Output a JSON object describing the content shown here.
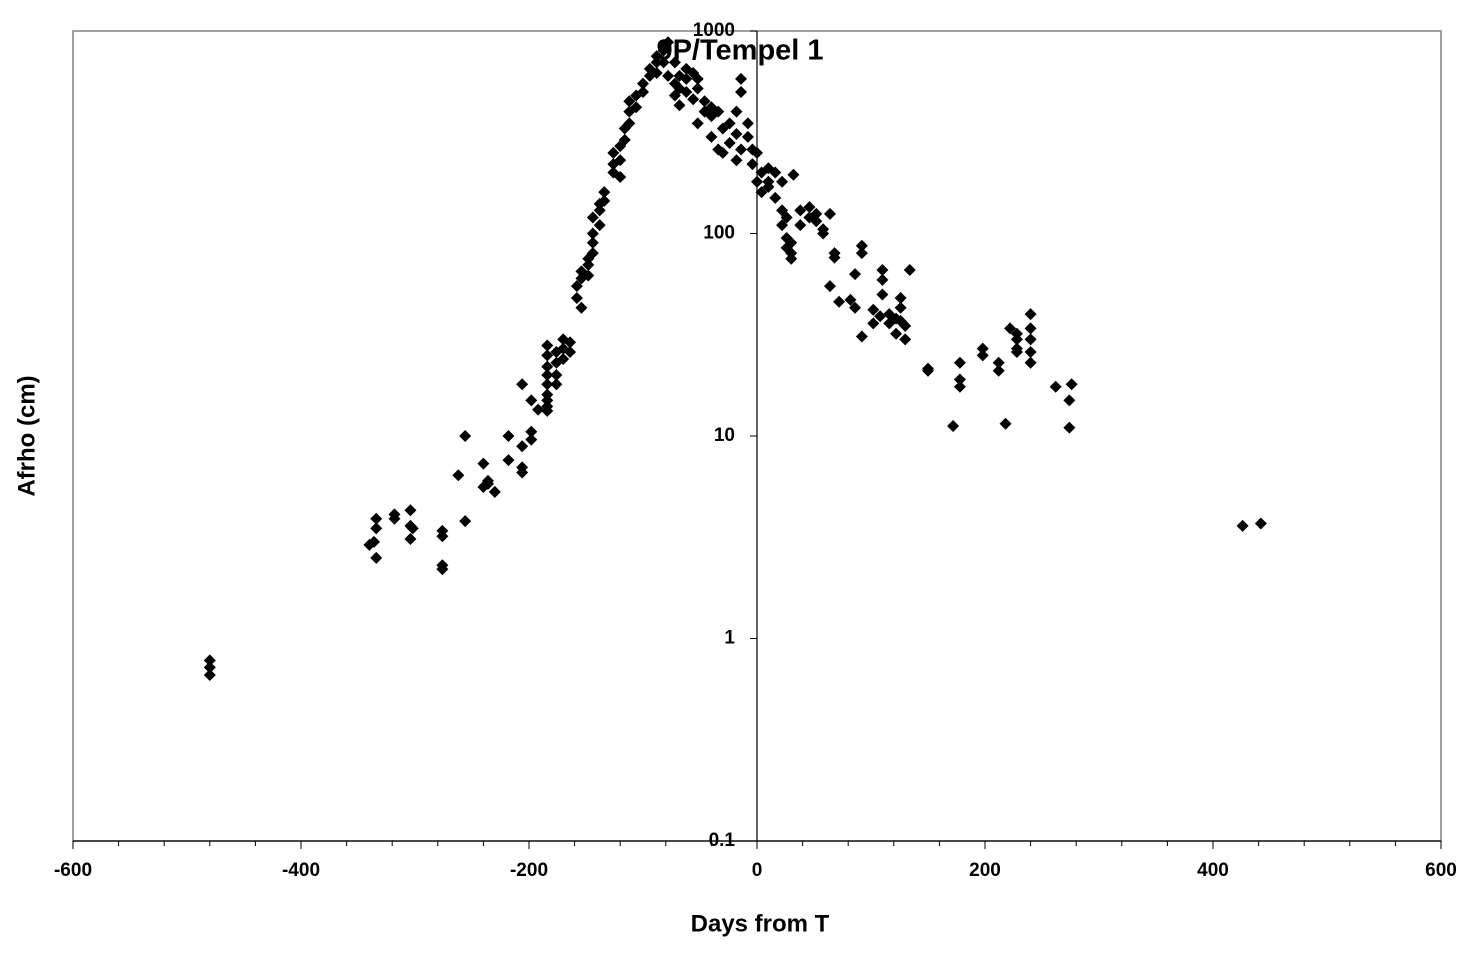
{
  "chart_data": {
    "type": "scatter",
    "title": "9P/Tempel 1",
    "xlabel": "Days from T",
    "ylabel": "Afrho (cm)",
    "color": "#000000",
    "yscale": "log",
    "marker": "diamond",
    "xlim": [
      -600,
      600
    ],
    "xticks": [
      -600,
      -400,
      -200,
      0,
      200,
      400,
      600
    ],
    "xminorticks": [
      -560,
      -520,
      -480,
      -440,
      -360,
      -320,
      -280,
      -240,
      -160,
      -120,
      -80,
      -40,
      40,
      80,
      120,
      160,
      240,
      280,
      320,
      360,
      440,
      480,
      520,
      560
    ],
    "ylim": [
      0.1,
      1000
    ],
    "yticks": [
      1000,
      100,
      10,
      1,
      0.1
    ],
    "x": [
      -480,
      -480,
      -480,
      -340,
      -336,
      -334,
      -334,
      -334,
      -318,
      -318,
      -304,
      -304,
      -304,
      -302,
      -276,
      -276,
      -276,
      -276,
      -262,
      -256,
      -256,
      -240,
      -240,
      -236,
      -236,
      -230,
      -218,
      -218,
      -206,
      -206,
      -206,
      -206,
      -198,
      -198,
      -198,
      -192,
      -184,
      -184,
      -184,
      -184,
      -184,
      -184,
      -184,
      -184,
      -184,
      -176,
      -176,
      -176,
      -176,
      -170,
      -170,
      -170,
      -164,
      -164,
      -158,
      -158,
      -154,
      -154,
      -154,
      -148,
      -148,
      -148,
      -144,
      -144,
      -144,
      -144,
      -138,
      -138,
      -138,
      -134,
      -134,
      -126,
      -126,
      -126,
      -120,
      -120,
      -120,
      -116,
      -116,
      -112,
      -112,
      -112,
      -106,
      -106,
      -100,
      -100,
      -94,
      -94,
      -88,
      -88,
      -88,
      -82,
      -82,
      -82,
      -78,
      -78,
      -72,
      -72,
      -72,
      -68,
      -68,
      -68,
      -62,
      -62,
      -62,
      -56,
      -56,
      -52,
      -52,
      -52,
      -46,
      -46,
      -40,
      -40,
      -40,
      -34,
      -34,
      -30,
      -30,
      -24,
      -24,
      -18,
      -18,
      -18,
      -14,
      -14,
      -14,
      -8,
      -8,
      -4,
      -4,
      0,
      0,
      4,
      4,
      10,
      10,
      10,
      16,
      16,
      22,
      22,
      22,
      26,
      26,
      26,
      30,
      30,
      30,
      32,
      38,
      38,
      46,
      46,
      52,
      52,
      58,
      58,
      64,
      64,
      68,
      68,
      72,
      82,
      86,
      86,
      92,
      92,
      92,
      102,
      102,
      108,
      110,
      110,
      110,
      116,
      116,
      122,
      122,
      126,
      126,
      126,
      130,
      130,
      134,
      150,
      150,
      172,
      178,
      178,
      178,
      198,
      198,
      212,
      212,
      218,
      222,
      228,
      228,
      228,
      228,
      240,
      240,
      240,
      240,
      240,
      262,
      274,
      274,
      276,
      426,
      442
    ],
    "values": [
      0.78,
      0.72,
      0.66,
      2.9,
      3.0,
      3.9,
      3.5,
      2.5,
      4.1,
      3.9,
      4.3,
      3.6,
      3.1,
      3.5,
      3.4,
      3.2,
      2.3,
      2.2,
      6.4,
      10,
      3.8,
      7.3,
      5.6,
      5.8,
      6.0,
      5.3,
      10,
      7.6,
      18,
      8.9,
      7.0,
      6.6,
      15,
      10.5,
      9.6,
      13.5,
      13.3,
      14,
      15,
      16,
      18,
      20,
      22,
      25,
      28,
      18,
      20,
      23,
      26,
      24,
      27,
      30,
      26,
      29,
      48,
      55,
      43,
      65,
      60,
      70,
      62,
      75,
      80,
      90,
      100,
      120,
      110,
      130,
      140,
      145,
      160,
      220,
      250,
      200,
      190,
      230,
      270,
      290,
      330,
      350,
      400,
      450,
      420,
      480,
      500,
      550,
      600,
      650,
      700,
      750,
      620,
      800,
      850,
      700,
      880,
      600,
      700,
      550,
      480,
      600,
      430,
      520,
      650,
      500,
      580,
      620,
      460,
      580,
      350,
      520,
      450,
      400,
      420,
      300,
      380,
      400,
      260,
      330,
      250,
      280,
      350,
      310,
      230,
      400,
      500,
      580,
      260,
      300,
      350,
      220,
      260,
      180,
      250,
      200,
      160,
      170,
      210,
      180,
      200,
      150,
      180,
      130,
      110,
      120,
      95,
      85,
      90,
      80,
      75,
      195,
      110,
      130,
      120,
      135,
      125,
      115,
      105,
      100,
      125,
      55,
      80,
      76,
      46,
      47,
      63,
      43,
      87,
      80,
      31,
      42,
      36,
      39,
      66,
      59,
      50,
      40,
      36,
      38,
      32,
      48,
      43,
      37,
      35,
      30,
      66,
      21,
      21.5,
      11.2,
      23,
      19,
      17.5,
      27,
      25,
      23,
      21,
      11.5,
      34,
      32,
      30,
      27,
      26,
      40,
      34,
      30,
      26,
      23,
      17.5,
      15,
      11,
      18,
      3.6,
      3.7
    ]
  }
}
